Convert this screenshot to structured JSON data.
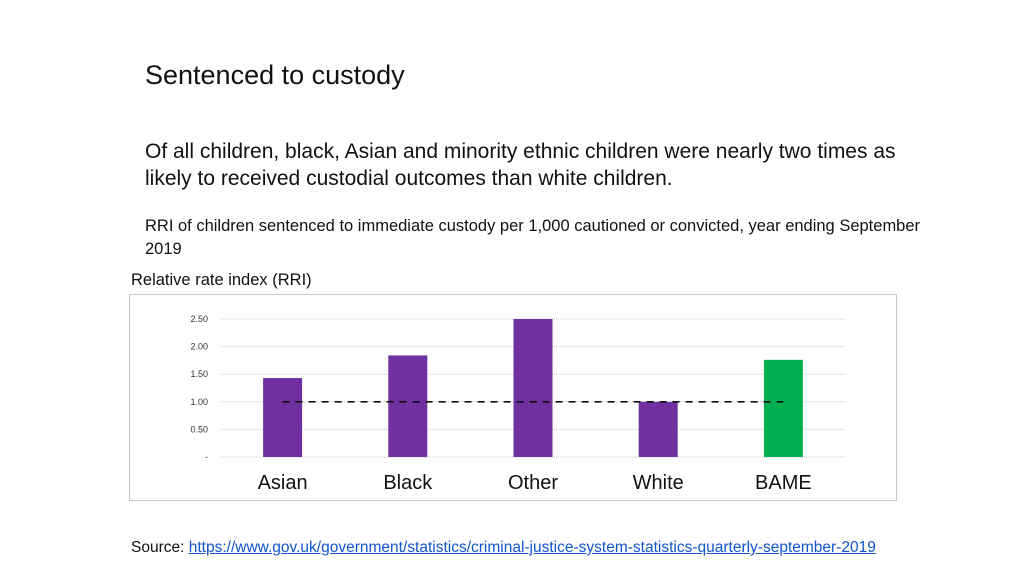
{
  "slide": {
    "title": "Sentenced to custody",
    "subtitle": "Of all children, black, Asian and minority ethnic children were nearly two times as likely to received custodial outcomes than white children.",
    "description": "RRI of children sentenced to immediate custody per 1,000 cautioned or convicted, year ending September 2019",
    "source_label": "Source: ",
    "source_url": "https://www.gov.uk/government/statistics/criminal-justice-system-statistics-quarterly-september-2019"
  },
  "chart_data": {
    "type": "bar",
    "title": "",
    "ylabel": "Relative rate index (RRI)",
    "xlabel": "",
    "categories": [
      "Asian",
      "Black",
      "Other",
      "White",
      "BAME"
    ],
    "values": [
      1.43,
      1.84,
      2.5,
      1.0,
      1.76
    ],
    "bar_colors": [
      "#7030a0",
      "#7030a0",
      "#7030a0",
      "#7030a0",
      "#00b050"
    ],
    "ylim": [
      0,
      2.5
    ],
    "yticks": [
      0,
      0.5,
      1.0,
      1.5,
      2.0,
      2.5
    ],
    "ytick_labels": [
      "-",
      "0.50",
      "1.00",
      "1.50",
      "2.00",
      "2.50"
    ],
    "reference_line": 1.0,
    "grid": true,
    "legend": "none"
  }
}
